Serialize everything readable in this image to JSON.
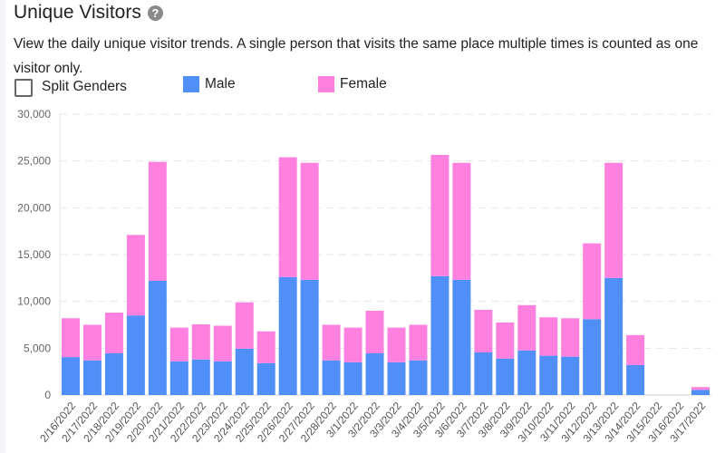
{
  "header": {
    "title": "Unique Visitors",
    "help_icon": "question-circle-icon",
    "description": "View the daily unique visitor trends. A single person that visits the same place multiple times is counted as one visitor only."
  },
  "controls": {
    "split_genders_label": "Split Genders",
    "split_genders_checked": false
  },
  "chart_data": {
    "type": "bar",
    "stacked": true,
    "title": "Unique Visitors",
    "xlabel": "",
    "ylabel": "",
    "ylim": [
      0,
      30000
    ],
    "yticks": [
      "0",
      "5,000",
      "10,000",
      "15,000",
      "20,000",
      "25,000",
      "30,000"
    ],
    "grid": true,
    "legend_position": "top",
    "categories": [
      "2/16/2022",
      "2/17/2022",
      "2/18/2022",
      "2/19/2022",
      "2/20/2022",
      "2/21/2022",
      "2/22/2022",
      "2/23/2022",
      "2/24/2022",
      "2/25/2022",
      "2/26/2022",
      "2/27/2022",
      "2/28/2022",
      "3/1/2022",
      "3/2/2022",
      "3/3/2022",
      "3/4/2022",
      "3/5/2022",
      "3/6/2022",
      "3/7/2022",
      "3/8/2022",
      "3/9/2022",
      "3/10/2022",
      "3/11/2022",
      "3/12/2022",
      "3/13/2022",
      "3/14/2022",
      "3/15/2022",
      "3/16/2022",
      "3/17/2022"
    ],
    "series": [
      {
        "name": "Male",
        "color": "#4f8ff7",
        "values": [
          4050,
          3700,
          4450,
          8500,
          12200,
          3600,
          3800,
          3600,
          4950,
          3400,
          12600,
          12300,
          3700,
          3500,
          4450,
          3500,
          3700,
          12700,
          12300,
          4550,
          3900,
          4750,
          4200,
          4100,
          8100,
          12500,
          3200,
          0,
          0,
          550
        ]
      },
      {
        "name": "Female",
        "color": "#ff80df",
        "values": [
          4150,
          3800,
          4350,
          8600,
          12700,
          3600,
          3750,
          3800,
          4950,
          3400,
          12800,
          12500,
          3800,
          3700,
          4550,
          3700,
          3800,
          12950,
          12500,
          4550,
          3850,
          4850,
          4100,
          4100,
          8100,
          12300,
          3200,
          0,
          0,
          300
        ]
      }
    ]
  }
}
